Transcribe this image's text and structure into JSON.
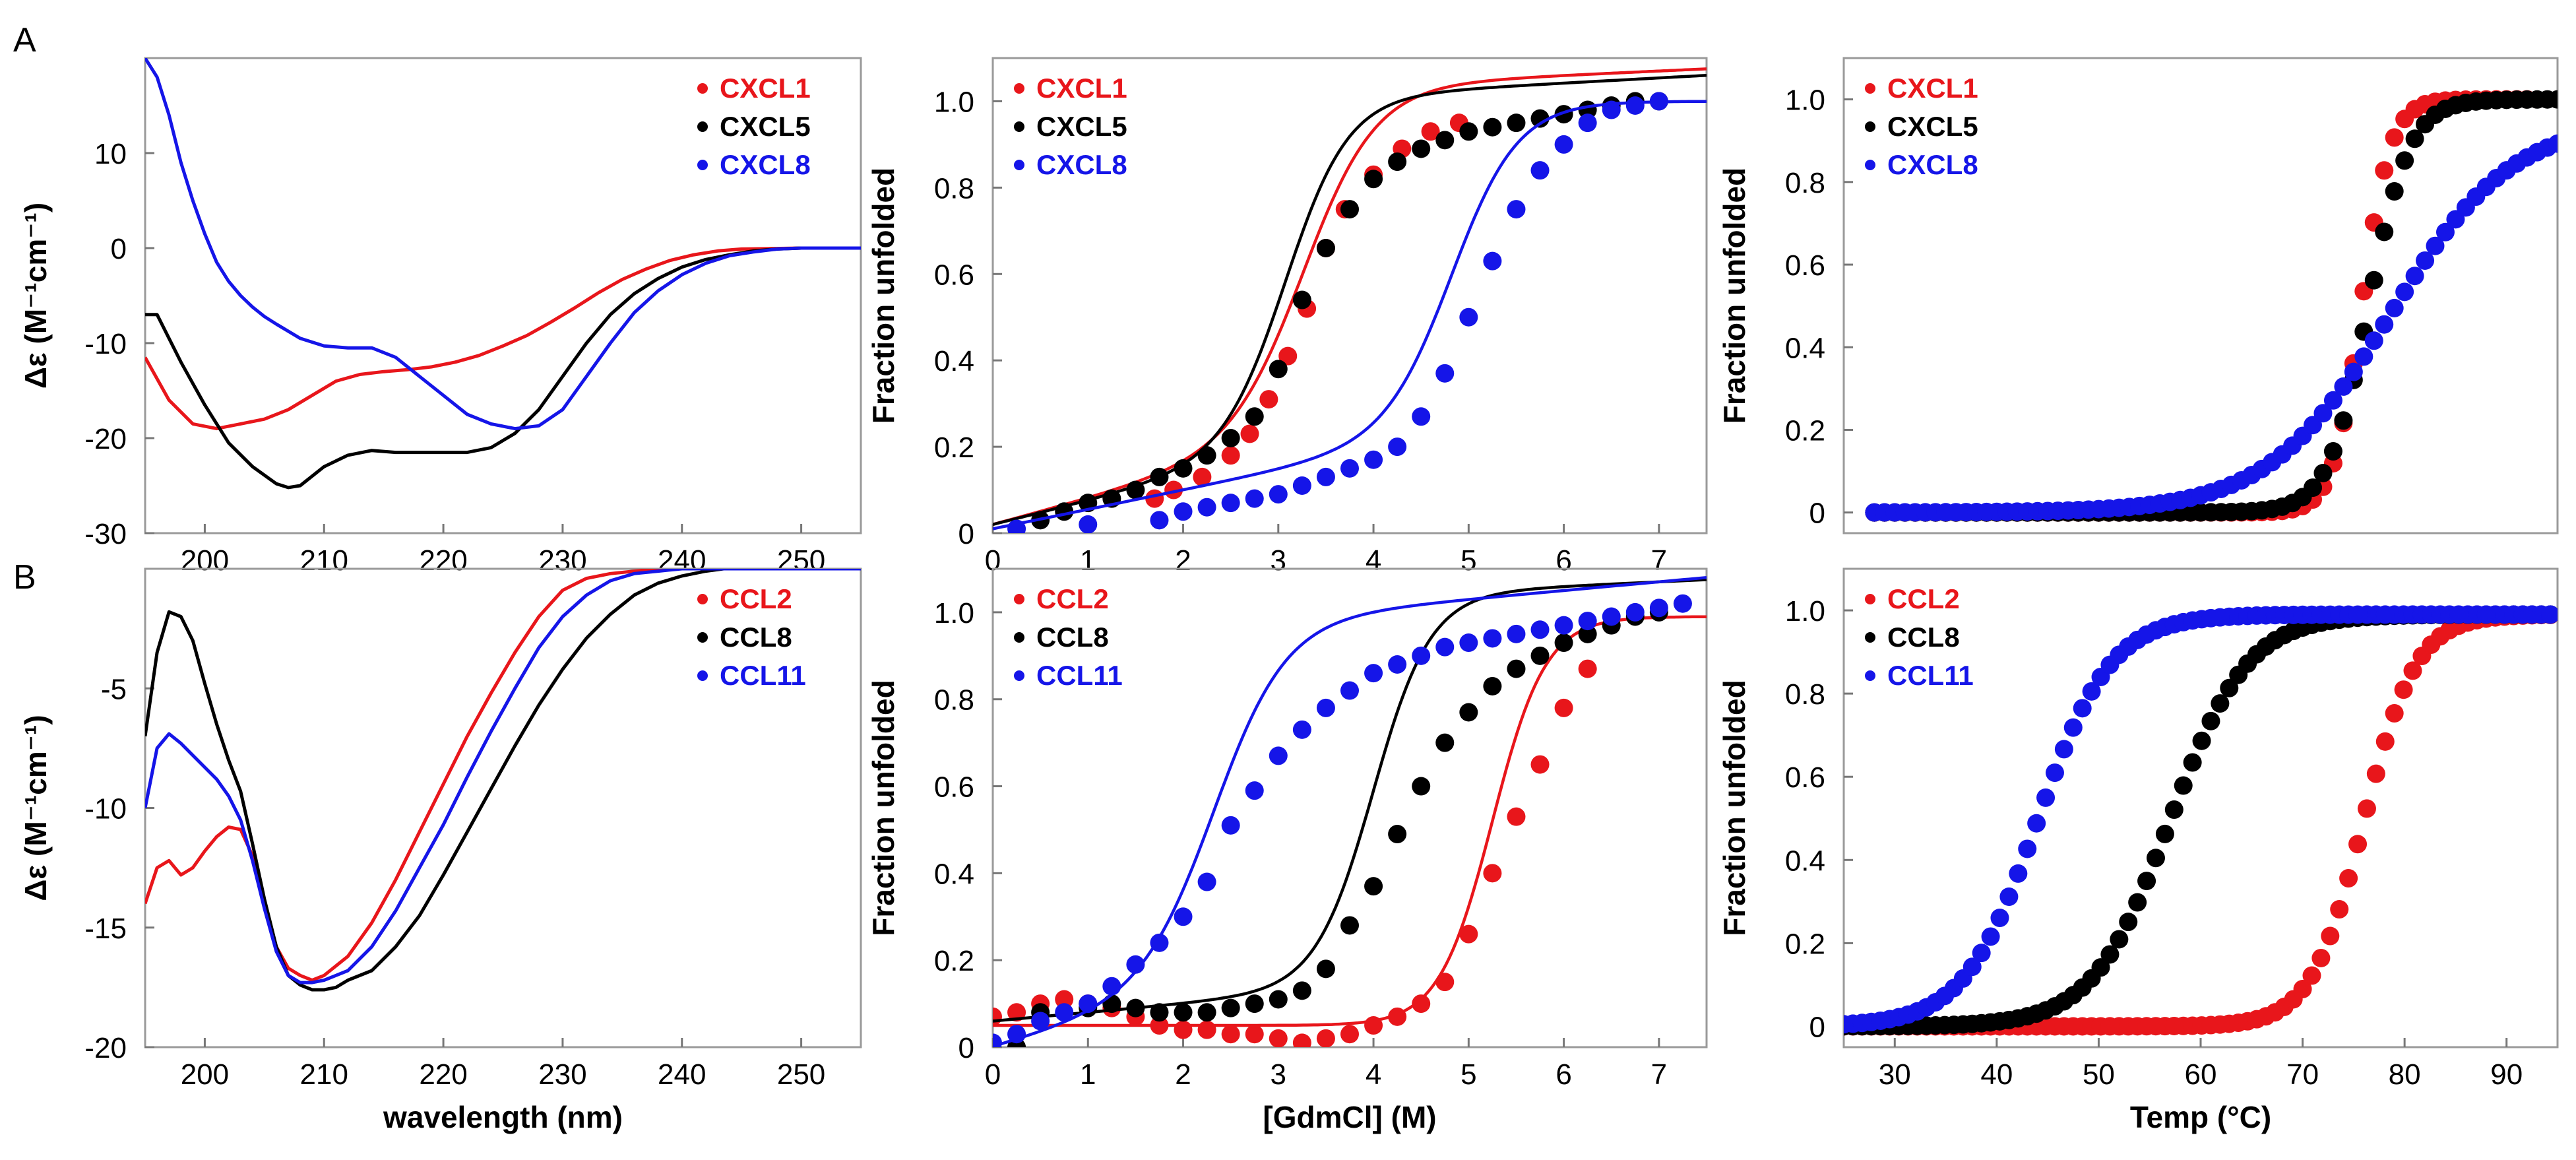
{
  "chart_data": [
    {
      "id": "A1",
      "type": "line",
      "ylabel": "Δε (M⁻¹cm⁻¹)",
      "xlabel": "",
      "xlim": [
        195,
        255
      ],
      "ylim": [
        -30,
        20
      ],
      "xticks": [
        200,
        210,
        220,
        230,
        240,
        250
      ],
      "yticks": [
        -30,
        -20,
        -10,
        0,
        10
      ],
      "series": [
        {
          "name": "CXCL1",
          "color": "#e8161b",
          "x": [
            195,
            197,
            199,
            201,
            203,
            205,
            207,
            209,
            211,
            213,
            215,
            217,
            219,
            221,
            223,
            225,
            227,
            229,
            231,
            233,
            235,
            237,
            239,
            241,
            243,
            245,
            250,
            255
          ],
          "y": [
            -11.5,
            -16,
            -18.5,
            -19,
            -18.5,
            -18,
            -17,
            -15.5,
            -14,
            -13.3,
            -13,
            -12.8,
            -12.5,
            -12,
            -11.3,
            -10.3,
            -9.2,
            -7.8,
            -6.3,
            -4.7,
            -3.3,
            -2.2,
            -1.3,
            -0.7,
            -0.3,
            -0.1,
            0,
            0
          ]
        },
        {
          "name": "CXCL5",
          "color": "#000000",
          "x": [
            195,
            196,
            198,
            200,
            202,
            204,
            206,
            207,
            208,
            210,
            212,
            214,
            216,
            218,
            220,
            222,
            224,
            226,
            228,
            230,
            232,
            234,
            236,
            238,
            240,
            242,
            244,
            246,
            248,
            250,
            255
          ],
          "y": [
            -7,
            -7,
            -12,
            -16.5,
            -20.5,
            -23,
            -24.8,
            -25.2,
            -25,
            -23,
            -21.8,
            -21.3,
            -21.5,
            -21.5,
            -21.5,
            -21.5,
            -21,
            -19.5,
            -17,
            -13.5,
            -10,
            -7,
            -4.8,
            -3.2,
            -2,
            -1.2,
            -0.7,
            -0.3,
            -0.1,
            0,
            0
          ]
        },
        {
          "name": "CXCL8",
          "color": "#1515e8",
          "x": [
            195,
            196,
            197,
            198,
            199,
            200,
            201,
            202,
            203,
            204,
            205,
            206,
            208,
            210,
            212,
            214,
            216,
            218,
            220,
            222,
            224,
            226,
            228,
            230,
            232,
            234,
            236,
            238,
            240,
            242,
            244,
            246,
            248,
            250,
            255
          ],
          "y": [
            20,
            18,
            14,
            9,
            5,
            1.5,
            -1.5,
            -3.5,
            -5,
            -6.2,
            -7.2,
            -8,
            -9.5,
            -10.3,
            -10.5,
            -10.5,
            -11.5,
            -13.5,
            -15.5,
            -17.5,
            -18.5,
            -19,
            -18.7,
            -17,
            -13.5,
            -10,
            -6.8,
            -4.5,
            -2.8,
            -1.6,
            -0.8,
            -0.4,
            -0.1,
            0,
            0
          ]
        }
      ]
    },
    {
      "id": "A2",
      "type": "line+scatter",
      "ylabel": "Fraction unfolded",
      "xlabel": "",
      "xlim": [
        0,
        7.5
      ],
      "ylim": [
        0,
        1.1
      ],
      "xticks": [
        0,
        1,
        2,
        3,
        4,
        5,
        6,
        7
      ],
      "yticks": [
        0,
        0.2,
        0.4,
        0.6,
        0.8,
        1.0
      ],
      "series": [
        {
          "name": "CXCL1",
          "color": "#e8161b",
          "fit": {
            "base": 0.02,
            "slope": 0.06,
            "top": 1.0,
            "top_slope": 0.01,
            "mid": 3.3,
            "width": 0.38
          },
          "points": {
            "x": [
              1.7,
              1.9,
              2.2,
              2.5,
              2.7,
              2.9,
              3.1,
              3.3,
              3.5,
              3.7,
              4.0,
              4.3,
              4.6,
              4.9
            ],
            "y": [
              0.08,
              0.1,
              0.13,
              0.18,
              0.23,
              0.31,
              0.41,
              0.52,
              0.66,
              0.75,
              0.83,
              0.89,
              0.93,
              0.95
            ]
          }
        },
        {
          "name": "CXCL5",
          "color": "#000000",
          "fit": {
            "base": 0.02,
            "slope": 0.055,
            "top": 0.97,
            "top_slope": 0.012,
            "mid": 3.1,
            "width": 0.33
          },
          "points": {
            "x": [
              0.5,
              0.75,
              1.0,
              1.25,
              1.5,
              1.75,
              2.0,
              2.25,
              2.5,
              2.75,
              3.0,
              3.25,
              3.5,
              3.75,
              4.0,
              4.25,
              4.5,
              4.75,
              5.0,
              5.25,
              5.5,
              5.75,
              6.0,
              6.25,
              6.5,
              6.75,
              7.0
            ],
            "y": [
              0.03,
              0.05,
              0.07,
              0.08,
              0.1,
              0.13,
              0.15,
              0.18,
              0.22,
              0.27,
              0.38,
              0.54,
              0.66,
              0.75,
              0.82,
              0.86,
              0.89,
              0.91,
              0.93,
              0.94,
              0.95,
              0.96,
              0.97,
              0.98,
              0.99,
              1.0,
              1.0
            ]
          }
        },
        {
          "name": "CXCL8",
          "color": "#1515e8",
          "fit": {
            "base": 0.01,
            "slope": 0.045,
            "top": 1.0,
            "top_slope": 0.0,
            "mid": 4.85,
            "width": 0.35
          },
          "points": {
            "x": [
              0.25,
              1.0,
              1.75,
              2.0,
              2.25,
              2.5,
              2.75,
              3.0,
              3.25,
              3.5,
              3.75,
              4.0,
              4.25,
              4.5,
              4.75,
              5.0,
              5.25,
              5.5,
              5.75,
              6.0,
              6.25,
              6.5,
              6.75,
              7.0
            ],
            "y": [
              0.01,
              0.02,
              0.03,
              0.05,
              0.06,
              0.07,
              0.08,
              0.09,
              0.11,
              0.13,
              0.15,
              0.17,
              0.2,
              0.27,
              0.37,
              0.5,
              0.63,
              0.75,
              0.84,
              0.9,
              0.95,
              0.98,
              0.99,
              1.0
            ]
          }
        }
      ]
    },
    {
      "id": "A3",
      "type": "scatter",
      "ylabel": "Fraction unfolded",
      "xlabel": "",
      "xlim": [
        25,
        95
      ],
      "ylim": [
        -0.05,
        1.1
      ],
      "xticks": [],
      "yticks": [
        0,
        0.2,
        0.4,
        0.6,
        0.8,
        1.0
      ],
      "series": [
        {
          "name": "CXCL1",
          "color": "#e8161b",
          "mid": 75.8,
          "width": 1.4,
          "top": 1.0,
          "x_start": 28,
          "x_end": 95,
          "step": 1.0,
          "xmax_plot": 92
        },
        {
          "name": "CXCL5",
          "color": "#000000",
          "mid": 76.5,
          "width": 2.0,
          "top": 1.0,
          "x_start": 28,
          "x_end": 95,
          "step": 1.0,
          "xmax_plot": 95
        },
        {
          "name": "CXCL8",
          "color": "#1515e8",
          "mid": 78.5,
          "width": 6.0,
          "top": 0.95,
          "x_start": 28,
          "x_end": 95,
          "step": 1.0,
          "xmax_plot": 95
        }
      ]
    },
    {
      "id": "B1",
      "type": "line",
      "ylabel": "Δε (M⁻¹cm⁻¹)",
      "xlabel": "wavelength (nm)",
      "xlim": [
        195,
        255
      ],
      "ylim": [
        -20,
        0
      ],
      "xticks": [
        200,
        210,
        220,
        230,
        240,
        250
      ],
      "yticks": [
        -20,
        -15,
        -10,
        -5
      ],
      "series": [
        {
          "name": "CCL2",
          "color": "#e8161b",
          "x": [
            195,
            196,
            197,
            198,
            199,
            200,
            201,
            202,
            203,
            204,
            205,
            206,
            207,
            208,
            209,
            210,
            212,
            214,
            216,
            218,
            220,
            222,
            224,
            226,
            228,
            230,
            232,
            234,
            236,
            238,
            240,
            245,
            250,
            255
          ],
          "y": [
            -14,
            -12.5,
            -12.2,
            -12.8,
            -12.5,
            -11.8,
            -11.2,
            -10.8,
            -10.9,
            -12,
            -14,
            -15.8,
            -16.7,
            -17,
            -17.2,
            -17,
            -16.2,
            -14.8,
            -13,
            -11,
            -9,
            -7,
            -5.2,
            -3.5,
            -2,
            -0.9,
            -0.4,
            -0.2,
            -0.1,
            0,
            0,
            0,
            0,
            0
          ]
        },
        {
          "name": "CCL8",
          "color": "#000000",
          "x": [
            195,
            196,
            197,
            198,
            199,
            200,
            201,
            202,
            203,
            204,
            205,
            206,
            207,
            208,
            209,
            210,
            211,
            212,
            214,
            216,
            218,
            220,
            222,
            224,
            226,
            228,
            230,
            232,
            234,
            236,
            238,
            240,
            242,
            245,
            248,
            250,
            255
          ],
          "y": [
            -7,
            -3.5,
            -1.8,
            -2,
            -3,
            -4.8,
            -6.5,
            -8,
            -9.3,
            -11.5,
            -13.8,
            -15.8,
            -17,
            -17.4,
            -17.6,
            -17.6,
            -17.5,
            -17.2,
            -16.8,
            -15.8,
            -14.5,
            -12.8,
            -11,
            -9.2,
            -7.4,
            -5.7,
            -4.2,
            -2.9,
            -1.9,
            -1.1,
            -0.6,
            -0.3,
            -0.1,
            0.1,
            0.1,
            0,
            0
          ]
        },
        {
          "name": "CCL11",
          "color": "#1515e8",
          "x": [
            195,
            196,
            197,
            198,
            199,
            200,
            201,
            202,
            203,
            204,
            205,
            206,
            207,
            208,
            209,
            210,
            212,
            214,
            216,
            218,
            220,
            222,
            224,
            226,
            228,
            230,
            232,
            234,
            236,
            238,
            240,
            245,
            250,
            255
          ],
          "y": [
            -10,
            -7.5,
            -6.9,
            -7.3,
            -7.8,
            -8.3,
            -8.8,
            -9.5,
            -10.5,
            -12.2,
            -14.2,
            -16,
            -17,
            -17.3,
            -17.3,
            -17.2,
            -16.8,
            -15.8,
            -14.3,
            -12.5,
            -10.7,
            -8.7,
            -6.8,
            -5,
            -3.3,
            -2,
            -1.1,
            -0.5,
            -0.2,
            -0.1,
            0,
            0,
            0,
            0
          ]
        }
      ]
    },
    {
      "id": "B2",
      "type": "line+scatter",
      "ylabel": "Fraction unfolded",
      "xlabel": "[GdmCl] (M)",
      "xlim": [
        0,
        7.5
      ],
      "ylim": [
        0,
        1.1
      ],
      "xticks": [
        0,
        1,
        2,
        3,
        4,
        5,
        6,
        7
      ],
      "yticks": [
        0,
        0.2,
        0.4,
        0.6,
        0.8,
        1.0
      ],
      "series": [
        {
          "name": "CCL2",
          "color": "#e8161b",
          "fit": {
            "base": 0.05,
            "slope": 0.0,
            "top": 0.99,
            "top_slope": 0.0,
            "mid": 5.25,
            "width": 0.28
          },
          "points": {
            "x": [
              0,
              0.25,
              0.5,
              0.75,
              1.0,
              1.25,
              1.5,
              1.75,
              2.0,
              2.25,
              2.5,
              2.75,
              3.0,
              3.25,
              3.5,
              3.75,
              4.0,
              4.25,
              4.5,
              4.75,
              5.0,
              5.25,
              5.5,
              5.75,
              6.0,
              6.25
            ],
            "y": [
              0.07,
              0.08,
              0.1,
              0.11,
              0.1,
              0.09,
              0.07,
              0.05,
              0.04,
              0.04,
              0.03,
              0.03,
              0.02,
              0.01,
              0.02,
              0.03,
              0.05,
              0.07,
              0.1,
              0.15,
              0.26,
              0.4,
              0.53,
              0.65,
              0.78,
              0.87
            ]
          }
        },
        {
          "name": "CCL8",
          "color": "#000000",
          "fit": {
            "base": 0.06,
            "slope": 0.02,
            "top": 1.0,
            "top_slope": 0.01,
            "mid": 4.0,
            "width": 0.3
          },
          "points": {
            "x": [
              0.25,
              0.5,
              1.0,
              1.25,
              1.5,
              1.75,
              2.0,
              2.25,
              2.5,
              2.75,
              3.0,
              3.25,
              3.5,
              3.75,
              4.0,
              4.25,
              4.5,
              4.75,
              5.0,
              5.25,
              5.5,
              5.75,
              6.0,
              6.25,
              6.5,
              6.75,
              7.0
            ],
            "y": [
              0.0,
              0.08,
              0.09,
              0.1,
              0.09,
              0.08,
              0.08,
              0.08,
              0.09,
              0.1,
              0.11,
              0.13,
              0.18,
              0.28,
              0.37,
              0.49,
              0.6,
              0.7,
              0.77,
              0.83,
              0.87,
              0.9,
              0.93,
              0.95,
              0.97,
              0.99,
              1.0
            ]
          }
        },
        {
          "name": "CCL11",
          "color": "#1515e8",
          "fit": {
            "base": 0.0,
            "slope": 0.06,
            "top": 0.93,
            "top_slope": 0.02,
            "mid": 2.35,
            "width": 0.38
          },
          "points": {
            "x": [
              0,
              0.25,
              0.5,
              0.75,
              1.0,
              1.25,
              1.5,
              1.75,
              2.0,
              2.25,
              2.5,
              2.75,
              3.0,
              3.25,
              3.5,
              3.75,
              4.0,
              4.25,
              4.5,
              4.75,
              5.0,
              5.25,
              5.5,
              5.75,
              6.0,
              6.25,
              6.5,
              6.75,
              7.0,
              7.25
            ],
            "y": [
              0.01,
              0.03,
              0.06,
              0.08,
              0.1,
              0.14,
              0.19,
              0.24,
              0.3,
              0.38,
              0.51,
              0.59,
              0.67,
              0.73,
              0.78,
              0.82,
              0.86,
              0.88,
              0.9,
              0.92,
              0.93,
              0.94,
              0.95,
              0.96,
              0.97,
              0.98,
              0.99,
              1.0,
              1.01,
              1.02
            ]
          }
        }
      ]
    },
    {
      "id": "B3",
      "type": "scatter",
      "ylabel": "Fraction unfolded",
      "xlabel": "Temp (°C)",
      "xlim": [
        25,
        95
      ],
      "ylim": [
        -0.05,
        1.1
      ],
      "xticks": [
        30,
        40,
        50,
        60,
        70,
        80,
        90
      ],
      "yticks": [
        0,
        0.2,
        0.4,
        0.6,
        0.8,
        1.0
      ],
      "series": [
        {
          "name": "CCL2",
          "color": "#e8161b",
          "mid": 76.0,
          "width": 2.6,
          "top": 0.99,
          "x_start": 25,
          "x_end": 95,
          "step": 0.9,
          "xmax_plot": 95
        },
        {
          "name": "CCL8",
          "color": "#000000",
          "mid": 57.0,
          "width": 3.8,
          "top": 0.99,
          "x_start": 25,
          "x_end": 95,
          "step": 0.9,
          "xmax_plot": 95
        },
        {
          "name": "CCL11",
          "color": "#1515e8",
          "mid": 44.0,
          "width": 3.6,
          "top": 0.99,
          "x_start": 25,
          "x_end": 95,
          "step": 0.9,
          "xmax_plot": 95
        }
      ]
    }
  ],
  "labels": {
    "panel_a": "A",
    "panel_b": "B",
    "tick_A3_top": "1.0",
    "tick_zero_B1_axis_spacer": ""
  }
}
